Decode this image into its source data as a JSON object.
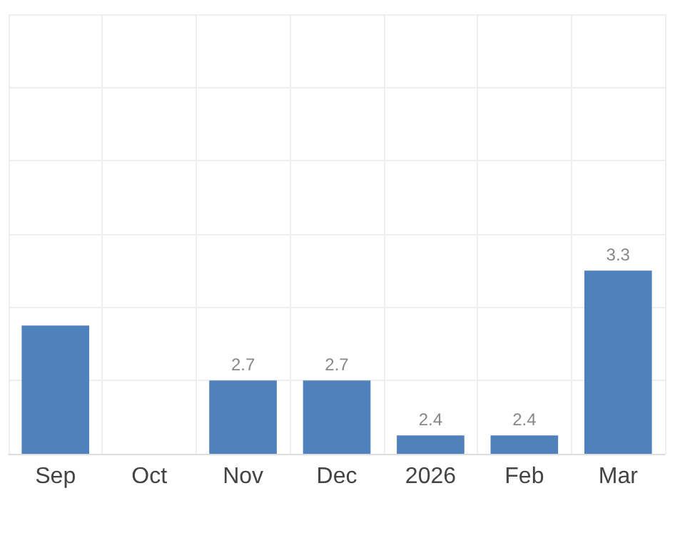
{
  "chart_data": {
    "type": "bar",
    "categories": [
      "Sep",
      "Oct",
      "Nov",
      "Dec",
      "2026",
      "Feb",
      "Mar"
    ],
    "values": [
      3.0,
      null,
      2.7,
      2.7,
      2.4,
      2.4,
      3.3
    ],
    "value_labels": [
      null,
      null,
      "2.7",
      "2.7",
      "2.4",
      "2.4",
      "3.3"
    ],
    "color": "#4f81bd",
    "ylim": [
      2.3,
      4.7
    ],
    "yticks": [
      {
        "value": 2.3,
        "label": null
      },
      {
        "value": 2.7,
        "label": null
      },
      {
        "value": 3.1,
        "label": null
      },
      {
        "value": 3.5,
        "label": null
      },
      {
        "value": 3.9,
        "label": null
      },
      {
        "value": 4.3,
        "label": null
      },
      {
        "value": 4.7,
        "label": null
      }
    ],
    "grid": true,
    "tick_labels": "x"
  }
}
